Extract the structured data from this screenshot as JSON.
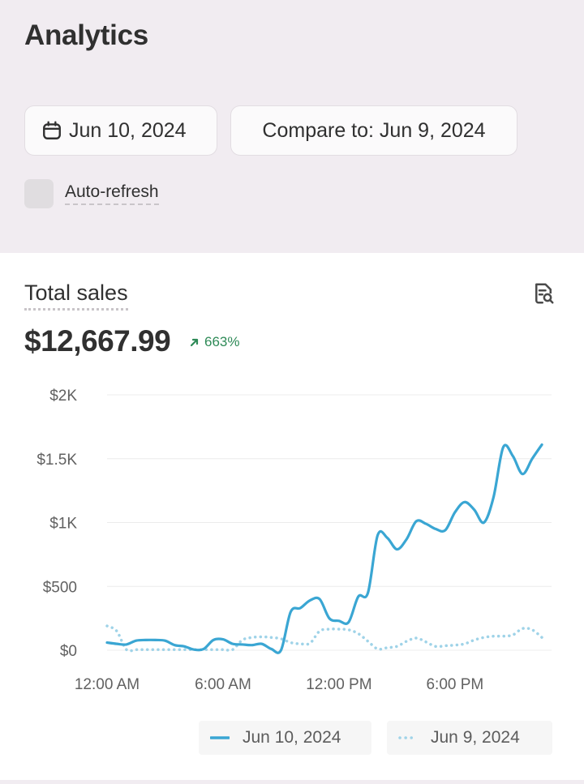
{
  "header": {
    "title": "Analytics"
  },
  "date_filter": {
    "primary": "Jun 10, 2024",
    "compare": "Compare to: Jun 9, 2024"
  },
  "auto_refresh": {
    "label": "Auto-refresh",
    "checked": false
  },
  "metric": {
    "title": "Total sales",
    "value": "$12,667.99",
    "change": "663%",
    "change_color": "#2e8a57"
  },
  "chart_data": {
    "type": "line",
    "title": "",
    "xlabel": "",
    "ylabel": "",
    "ylim": [
      0,
      2000
    ],
    "xlim": [
      0,
      23
    ],
    "y_ticks": [
      {
        "v": 0,
        "label": "$0"
      },
      {
        "v": 500,
        "label": "$500"
      },
      {
        "v": 1000,
        "label": "$1K"
      },
      {
        "v": 1500,
        "label": "$1.5K"
      },
      {
        "v": 2000,
        "label": "$2K"
      }
    ],
    "x_ticks": [
      {
        "v": 0,
        "label": "12:00 AM"
      },
      {
        "v": 6,
        "label": "6:00 AM"
      },
      {
        "v": 12,
        "label": "12:00 PM"
      },
      {
        "v": 18,
        "label": "6:00 PM"
      }
    ],
    "grid": true,
    "legend_position": "bottom",
    "series": [
      {
        "name": "Jun 10, 2024",
        "color": "#3aa6d3",
        "style": "solid",
        "x": [
          0,
          0.5,
          1,
          1.5,
          2,
          2.5,
          3,
          3.5,
          4,
          4.5,
          5,
          5.5,
          6,
          6.5,
          7,
          7.5,
          8,
          8.5,
          9,
          9.5,
          10,
          10.5,
          11,
          11.5,
          12,
          12.5,
          13,
          13.5,
          14,
          14.5,
          15,
          15.5,
          16,
          16.5,
          17,
          17.5,
          18,
          18.5,
          19,
          19.5,
          20,
          20.5,
          21,
          21.5,
          22,
          22.5
        ],
        "values": [
          60,
          50,
          45,
          75,
          80,
          80,
          75,
          40,
          30,
          5,
          10,
          80,
          85,
          50,
          45,
          40,
          50,
          10,
          0,
          300,
          330,
          390,
          400,
          250,
          230,
          220,
          420,
          450,
          900,
          880,
          790,
          870,
          1010,
          990,
          950,
          940,
          1080,
          1160,
          1100,
          1000,
          1200,
          1590,
          1520,
          1380,
          1500,
          1610
        ]
      },
      {
        "name": "Jun 9, 2024",
        "color": "#9fd3e8",
        "style": "dotted",
        "x": [
          0,
          0.5,
          1,
          1.5,
          2,
          2.5,
          3,
          3.5,
          4,
          4.5,
          5,
          5.5,
          6,
          6.5,
          7,
          7.5,
          8,
          8.5,
          9,
          9.5,
          10,
          10.5,
          11,
          11.5,
          12,
          12.5,
          13,
          13.5,
          14,
          14.5,
          15,
          15.5,
          16,
          16.5,
          17,
          17.5,
          18,
          18.5,
          19,
          19.5,
          20,
          20.5,
          21,
          21.5,
          22,
          22.5
        ],
        "values": [
          190,
          150,
          5,
          5,
          5,
          5,
          5,
          5,
          5,
          5,
          5,
          5,
          5,
          5,
          80,
          100,
          105,
          100,
          90,
          60,
          50,
          55,
          150,
          165,
          165,
          160,
          130,
          70,
          10,
          20,
          30,
          70,
          95,
          65,
          30,
          35,
          40,
          50,
          80,
          100,
          110,
          110,
          120,
          170,
          160,
          100
        ]
      }
    ]
  }
}
